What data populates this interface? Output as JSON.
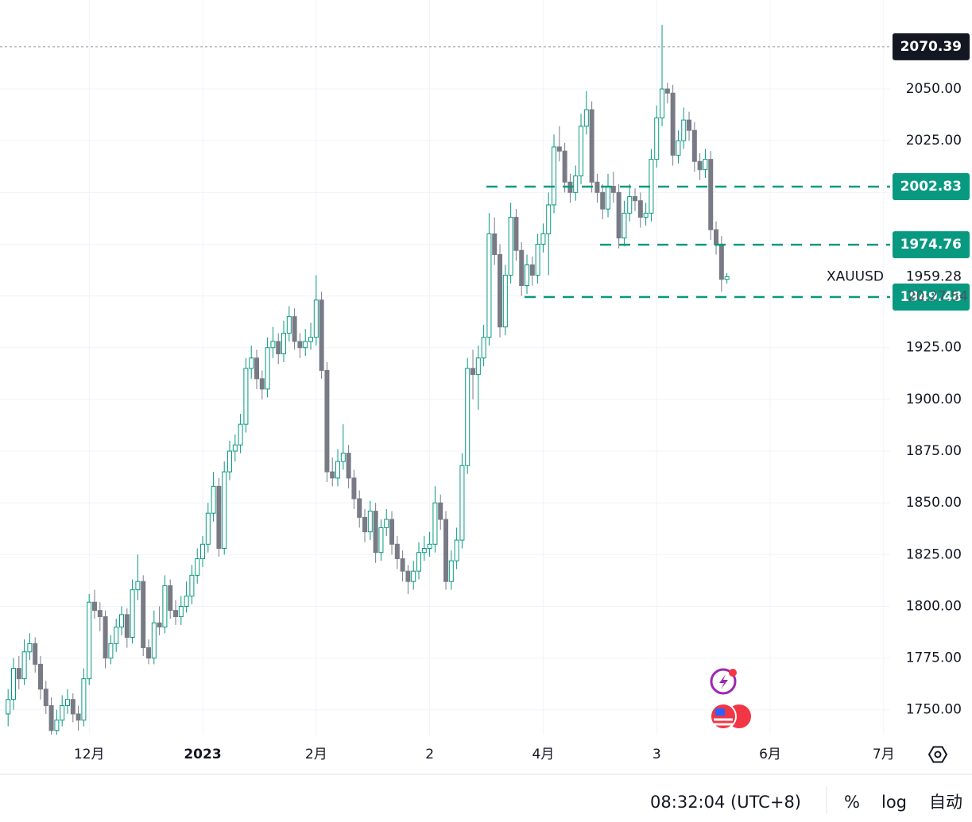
{
  "chart_data": {
    "type": "candlestick",
    "symbol": "XAUUSD",
    "up_color": "#089981",
    "down_color": "#787b86",
    "ylim": [
      1738,
      2093
    ],
    "yticks": [
      {
        "value": 1750,
        "label": "1750.00"
      },
      {
        "value": 1775,
        "label": "1775.00"
      },
      {
        "value": 1800,
        "label": "1800.00"
      },
      {
        "value": 1825,
        "label": "1825.00"
      },
      {
        "value": 1850,
        "label": "1850.00"
      },
      {
        "value": 1875,
        "label": "1875.00"
      },
      {
        "value": 1900,
        "label": "1900.00"
      },
      {
        "value": 1925,
        "label": "1925.00"
      },
      {
        "value": 1950,
        "label": "1950.00"
      },
      {
        "value": 1975,
        "label": "1975.00"
      },
      {
        "value": 2000,
        "label": "2000.00"
      },
      {
        "value": 2025,
        "label": "2025.00"
      },
      {
        "value": 2050,
        "label": "2050.00"
      }
    ],
    "xlim": [
      -1.5,
      163.2
    ],
    "xticks": [
      {
        "value": 15,
        "label": "12月"
      },
      {
        "value": 36,
        "label": "2023"
      },
      {
        "value": 57,
        "label": "2月"
      },
      {
        "value": 78,
        "label": "2"
      },
      {
        "value": 99,
        "label": "4月"
      },
      {
        "value": 120,
        "label": "3"
      },
      {
        "value": 141,
        "label": "6月"
      },
      {
        "value": 162,
        "label": "7月"
      }
    ],
    "grid": true,
    "ohlc": [
      [
        1748,
        1760,
        1742,
        1755
      ],
      [
        1755,
        1775,
        1750,
        1770
      ],
      [
        1770,
        1776,
        1760,
        1765
      ],
      [
        1765,
        1784,
        1762,
        1778
      ],
      [
        1778,
        1787,
        1774,
        1782
      ],
      [
        1782,
        1785,
        1768,
        1772
      ],
      [
        1772,
        1776,
        1755,
        1760
      ],
      [
        1760,
        1764,
        1748,
        1752
      ],
      [
        1752,
        1756,
        1737,
        1740
      ],
      [
        1740,
        1750,
        1737,
        1745
      ],
      [
        1745,
        1757,
        1742,
        1752
      ],
      [
        1752,
        1760,
        1748,
        1755
      ],
      [
        1755,
        1758,
        1744,
        1748
      ],
      [
        1748,
        1752,
        1740,
        1745
      ],
      [
        1745,
        1770,
        1742,
        1765
      ],
      [
        1765,
        1806,
        1762,
        1802
      ],
      [
        1802,
        1808,
        1794,
        1798
      ],
      [
        1798,
        1802,
        1788,
        1795
      ],
      [
        1795,
        1798,
        1770,
        1775
      ],
      [
        1775,
        1786,
        1772,
        1782
      ],
      [
        1782,
        1794,
        1778,
        1790
      ],
      [
        1790,
        1800,
        1786,
        1796
      ],
      [
        1796,
        1799,
        1780,
        1785
      ],
      [
        1785,
        1813,
        1782,
        1808
      ],
      [
        1808,
        1825,
        1803,
        1812
      ],
      [
        1812,
        1815,
        1776,
        1780
      ],
      [
        1780,
        1784,
        1772,
        1775
      ],
      [
        1775,
        1798,
        1772,
        1792
      ],
      [
        1792,
        1800,
        1786,
        1790
      ],
      [
        1790,
        1815,
        1787,
        1810
      ],
      [
        1810,
        1813,
        1794,
        1798
      ],
      [
        1798,
        1803,
        1791,
        1795
      ],
      [
        1795,
        1805,
        1791,
        1800
      ],
      [
        1800,
        1812,
        1797,
        1805
      ],
      [
        1805,
        1820,
        1801,
        1815
      ],
      [
        1815,
        1828,
        1811,
        1823
      ],
      [
        1823,
        1834,
        1819,
        1830
      ],
      [
        1830,
        1850,
        1826,
        1845
      ],
      [
        1845,
        1865,
        1841,
        1858
      ],
      [
        1858,
        1862,
        1824,
        1828
      ],
      [
        1828,
        1870,
        1825,
        1865
      ],
      [
        1865,
        1880,
        1861,
        1875
      ],
      [
        1875,
        1883,
        1870,
        1878
      ],
      [
        1878,
        1893,
        1874,
        1888
      ],
      [
        1888,
        1920,
        1884,
        1915
      ],
      [
        1915,
        1926,
        1910,
        1920
      ],
      [
        1920,
        1924,
        1905,
        1910
      ],
      [
        1910,
        1914,
        1900,
        1905
      ],
      [
        1905,
        1930,
        1901,
        1925
      ],
      [
        1925,
        1935,
        1920,
        1928
      ],
      [
        1928,
        1932,
        1917,
        1922
      ],
      [
        1922,
        1938,
        1918,
        1932
      ],
      [
        1932,
        1945,
        1928,
        1940
      ],
      [
        1940,
        1944,
        1924,
        1928
      ],
      [
        1928,
        1932,
        1920,
        1925
      ],
      [
        1925,
        1934,
        1921,
        1928
      ],
      [
        1928,
        1937,
        1924,
        1930
      ],
      [
        1930,
        1960,
        1926,
        1948
      ],
      [
        1948,
        1952,
        1910,
        1914
      ],
      [
        1914,
        1918,
        1860,
        1865
      ],
      [
        1865,
        1872,
        1858,
        1862
      ],
      [
        1862,
        1876,
        1858,
        1870
      ],
      [
        1870,
        1888,
        1866,
        1874
      ],
      [
        1874,
        1878,
        1857,
        1862
      ],
      [
        1862,
        1866,
        1847,
        1852
      ],
      [
        1852,
        1856,
        1838,
        1843
      ],
      [
        1843,
        1847,
        1831,
        1836
      ],
      [
        1836,
        1851,
        1832,
        1846
      ],
      [
        1846,
        1850,
        1821,
        1826
      ],
      [
        1826,
        1842,
        1822,
        1838
      ],
      [
        1838,
        1847,
        1834,
        1842
      ],
      [
        1842,
        1846,
        1825,
        1830
      ],
      [
        1830,
        1834,
        1818,
        1823
      ],
      [
        1823,
        1827,
        1812,
        1817
      ],
      [
        1817,
        1820,
        1806,
        1812
      ],
      [
        1812,
        1822,
        1808,
        1817
      ],
      [
        1817,
        1831,
        1813,
        1826
      ],
      [
        1826,
        1834,
        1822,
        1828
      ],
      [
        1828,
        1836,
        1824,
        1830
      ],
      [
        1830,
        1858,
        1826,
        1850
      ],
      [
        1850,
        1854,
        1837,
        1842
      ],
      [
        1842,
        1846,
        1808,
        1812
      ],
      [
        1812,
        1827,
        1808,
        1822
      ],
      [
        1822,
        1838,
        1818,
        1832
      ],
      [
        1832,
        1874,
        1828,
        1868
      ],
      [
        1868,
        1920,
        1864,
        1915
      ],
      [
        1915,
        1924,
        1900,
        1912
      ],
      [
        1912,
        1926,
        1895,
        1920
      ],
      [
        1920,
        1936,
        1916,
        1930
      ],
      [
        1930,
        1990,
        1926,
        1980
      ],
      [
        1980,
        1988,
        1965,
        1970
      ],
      [
        1970,
        1975,
        1930,
        1935
      ],
      [
        1935,
        1965,
        1931,
        1960
      ],
      [
        1960,
        1995,
        1956,
        1988
      ],
      [
        1988,
        1992,
        1967,
        1972
      ],
      [
        1972,
        1976,
        1950,
        1955
      ],
      [
        1955,
        1970,
        1951,
        1965
      ],
      [
        1965,
        1969,
        1955,
        1960
      ],
      [
        1960,
        1980,
        1956,
        1975
      ],
      [
        1975,
        1985,
        1971,
        1980
      ],
      [
        1980,
        2000,
        1960,
        1994
      ],
      [
        1994,
        2028,
        1990,
        2022
      ],
      [
        2022,
        2032,
        2015,
        2020
      ],
      [
        2020,
        2024,
        2000,
        2005
      ],
      [
        2005,
        2009,
        1995,
        2000
      ],
      [
        2000,
        2013,
        1996,
        2008
      ],
      [
        2008,
        2038,
        2004,
        2032
      ],
      [
        2032,
        2049,
        2028,
        2040
      ],
      [
        2040,
        2044,
        2000,
        2005
      ],
      [
        2005,
        2009,
        1995,
        2000
      ],
      [
        2000,
        2004,
        1987,
        1992
      ],
      [
        1992,
        2009,
        1988,
        2003
      ],
      [
        2003,
        2010,
        1995,
        2000
      ],
      [
        2000,
        2004,
        1973,
        1978
      ],
      [
        1978,
        1996,
        1974,
        1990
      ],
      [
        1990,
        2004,
        1986,
        1998
      ],
      [
        1998,
        2002,
        1991,
        1996
      ],
      [
        1996,
        2000,
        1983,
        1988
      ],
      [
        1988,
        1995,
        1984,
        1990
      ],
      [
        1990,
        2021,
        1986,
        2016
      ],
      [
        2016,
        2042,
        2012,
        2036
      ],
      [
        2036,
        2081,
        2032,
        2050
      ],
      [
        2050,
        2053,
        2043,
        2048
      ],
      [
        2048,
        2052,
        2013,
        2018
      ],
      [
        2018,
        2030,
        2014,
        2025
      ],
      [
        2025,
        2041,
        2021,
        2035
      ],
      [
        2035,
        2039,
        2025,
        2030
      ],
      [
        2030,
        2034,
        2010,
        2015
      ],
      [
        2015,
        2019,
        2006,
        2011
      ],
      [
        2011,
        2021,
        2007,
        2016
      ],
      [
        2016,
        2020,
        1977,
        1982
      ],
      [
        1982,
        1986,
        1970,
        1975
      ],
      [
        1975,
        1979,
        1952,
        1958
      ],
      [
        1958,
        1961,
        1956,
        1959.28
      ]
    ],
    "price_lines": [
      {
        "value": 2070.39,
        "style": "dotted",
        "color": "#9598a1",
        "label_color": "#131722"
      },
      {
        "value": 2002.83,
        "style": "dashed",
        "color": "#089981",
        "label_color": "#089981"
      },
      {
        "value": 1974.76,
        "style": "dashed",
        "color": "#089981",
        "label_color": "#089981"
      },
      {
        "value": 1949.48,
        "style": "dashed",
        "color": "#089981",
        "label_color": "#089981"
      }
    ],
    "last_price": 1959.28,
    "countdown": "20:27:54"
  },
  "footer": {
    "time": "08:32:04 (UTC+8)",
    "buttons": [
      "%",
      "log",
      "自动"
    ]
  }
}
